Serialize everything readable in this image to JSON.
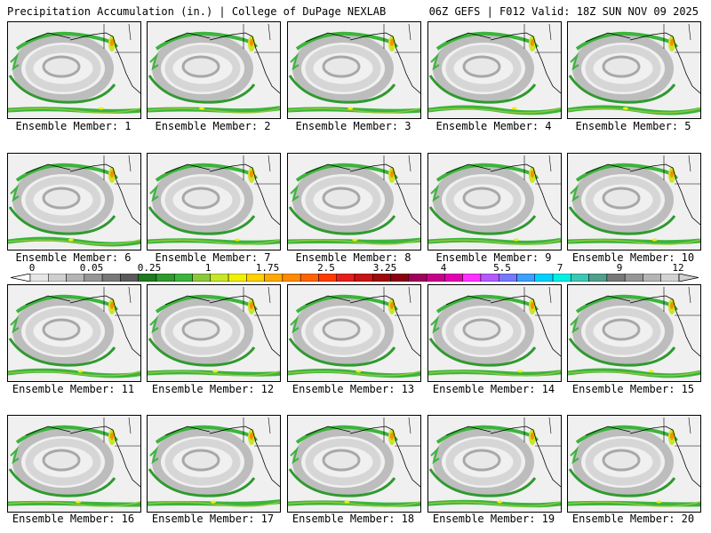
{
  "header": {
    "title_left": "Precipitation Accumulation (in.) | College of DuPage NEXLAB",
    "title_right": "06Z GEFS | F012 Valid: 18Z SUN NOV 09 2025"
  },
  "panels": [
    {
      "label": "Ensemble Member: 1"
    },
    {
      "label": "Ensemble Member: 2"
    },
    {
      "label": "Ensemble Member: 3"
    },
    {
      "label": "Ensemble Member: 4"
    },
    {
      "label": "Ensemble Member: 5"
    },
    {
      "label": "Ensemble Member: 6"
    },
    {
      "label": "Ensemble Member: 7"
    },
    {
      "label": "Ensemble Member: 8"
    },
    {
      "label": "Ensemble Member: 9"
    },
    {
      "label": "Ensemble Member: 10"
    },
    {
      "label": "Ensemble Member: 11"
    },
    {
      "label": "Ensemble Member: 12"
    },
    {
      "label": "Ensemble Member: 13"
    },
    {
      "label": "Ensemble Member: 14"
    },
    {
      "label": "Ensemble Member: 15"
    },
    {
      "label": "Ensemble Member: 16"
    },
    {
      "label": "Ensemble Member: 17"
    },
    {
      "label": "Ensemble Member: 18"
    },
    {
      "label": "Ensemble Member: 19"
    },
    {
      "label": "Ensemble Member: 20"
    }
  ],
  "colorbar": {
    "labels": [
      "0",
      "0.05",
      "0.25",
      "1",
      "1.75",
      "2.5",
      "3.25",
      "4",
      "5.5",
      "7",
      "9",
      "12"
    ],
    "colors": [
      "#e6e6e6",
      "#cfcfcf",
      "#b4b4b4",
      "#969696",
      "#787878",
      "#5a5a5a",
      "#1e7a1e",
      "#2f9a2f",
      "#3cb43c",
      "#8cc83c",
      "#c8e628",
      "#f0f000",
      "#ffd200",
      "#ffaa00",
      "#ff8c00",
      "#ff6400",
      "#ff3c00",
      "#e61e1e",
      "#c81414",
      "#a00a0a",
      "#8c0014",
      "#a0005a",
      "#c8008c",
      "#e600b4",
      "#ff32ff",
      "#b45aff",
      "#7878ff",
      "#3ca0ff",
      "#00d2ff",
      "#00f0e6",
      "#3cc8b4",
      "#50a08c",
      "#787878",
      "#969696",
      "#b4b4b4",
      "#d2d2d2"
    ]
  }
}
